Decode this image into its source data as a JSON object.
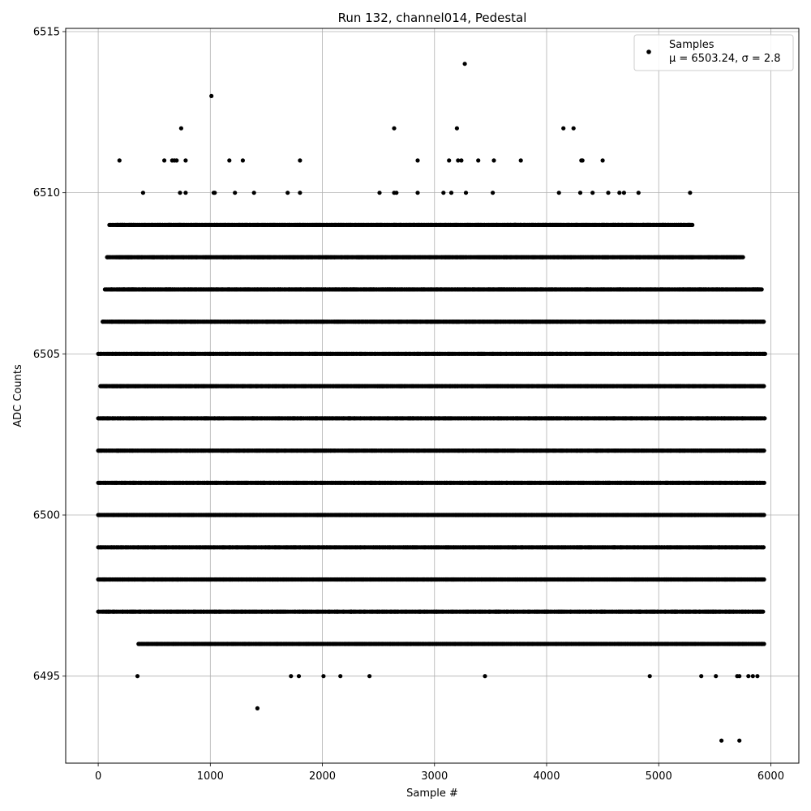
{
  "chart_data": {
    "type": "scatter",
    "title": "Run 132, channel014, Pedestal",
    "xlabel": "Sample #",
    "ylabel": "ADC Counts",
    "xlim": [
      -290,
      6250
    ],
    "ylim": [
      6492.3,
      6515.1
    ],
    "x_ticks": [
      0,
      1000,
      2000,
      3000,
      4000,
      5000,
      6000
    ],
    "y_ticks": [
      6495,
      6500,
      6505,
      6510,
      6515
    ],
    "grid": true,
    "marker_color": "#000000",
    "legend": {
      "placement": "upper right",
      "entries": [
        {
          "name": "Samples",
          "stat": "μ = 6503.24, σ = 2.8"
        }
      ]
    },
    "series": [
      {
        "name": "Samples",
        "bands": [
          {
            "y": 6501,
            "ranges": [
              [
                0,
                5950
              ]
            ]
          },
          {
            "y": 6502,
            "ranges": [
              [
                0,
                5950
              ]
            ]
          },
          {
            "y": 6503,
            "ranges": [
              [
                0,
                5950
              ]
            ]
          },
          {
            "y": 6504,
            "ranges": [
              [
                20,
                5950
              ]
            ]
          },
          {
            "y": 6505,
            "ranges": [
              [
                0,
                5950
              ]
            ]
          },
          {
            "y": 6500,
            "ranges": [
              [
                0,
                5940
              ]
            ]
          },
          {
            "y": 6506,
            "ranges": [
              [
                40,
                5940
              ]
            ]
          },
          {
            "y": 6499,
            "ranges": [
              [
                0,
                5940
              ]
            ]
          },
          {
            "y": 6507,
            "ranges": [
              [
                60,
                5930
              ]
            ]
          },
          {
            "y": 6498,
            "ranges": [
              [
                0,
                5940
              ]
            ]
          },
          {
            "y": 6508,
            "ranges": [
              [
                80,
                5760
              ]
            ]
          },
          {
            "y": 6497,
            "ranges": [
              [
                0,
                5940
              ]
            ]
          },
          {
            "y": 6509,
            "ranges": [
              [
                100,
                5300
              ]
            ]
          },
          {
            "y": 6496,
            "ranges": [
              [
                360,
                5940
              ]
            ]
          }
        ],
        "points": [
          [
            190,
            6511
          ],
          [
            590,
            6511
          ],
          [
            660,
            6511
          ],
          [
            680,
            6511
          ],
          [
            700,
            6511
          ],
          [
            780,
            6511
          ],
          [
            1170,
            6511
          ],
          [
            1290,
            6511
          ],
          [
            1800,
            6511
          ],
          [
            2850,
            6511
          ],
          [
            3130,
            6511
          ],
          [
            3210,
            6511
          ],
          [
            3240,
            6511
          ],
          [
            3390,
            6511
          ],
          [
            3530,
            6511
          ],
          [
            3770,
            6511
          ],
          [
            4310,
            6511
          ],
          [
            4320,
            6511
          ],
          [
            4500,
            6511
          ],
          [
            400,
            6510
          ],
          [
            730,
            6510
          ],
          [
            780,
            6510
          ],
          [
            1030,
            6510
          ],
          [
            1040,
            6510
          ],
          [
            1220,
            6510
          ],
          [
            1390,
            6510
          ],
          [
            1690,
            6510
          ],
          [
            1800,
            6510
          ],
          [
            2510,
            6510
          ],
          [
            2640,
            6510
          ],
          [
            2660,
            6510
          ],
          [
            2850,
            6510
          ],
          [
            3080,
            6510
          ],
          [
            3150,
            6510
          ],
          [
            3280,
            6510
          ],
          [
            3520,
            6510
          ],
          [
            4110,
            6510
          ],
          [
            4300,
            6510
          ],
          [
            4410,
            6510
          ],
          [
            4550,
            6510
          ],
          [
            4650,
            6510
          ],
          [
            4690,
            6510
          ],
          [
            4820,
            6510
          ],
          [
            5280,
            6510
          ],
          [
            740,
            6512
          ],
          [
            2640,
            6512
          ],
          [
            3200,
            6512
          ],
          [
            4150,
            6512
          ],
          [
            4240,
            6512
          ],
          [
            1010,
            6513
          ],
          [
            3270,
            6514
          ],
          [
            350,
            6495
          ],
          [
            1720,
            6495
          ],
          [
            1790,
            6495
          ],
          [
            2010,
            6495
          ],
          [
            2160,
            6495
          ],
          [
            2420,
            6495
          ],
          [
            3450,
            6495
          ],
          [
            4920,
            6495
          ],
          [
            5380,
            6495
          ],
          [
            5510,
            6495
          ],
          [
            5700,
            6495
          ],
          [
            5720,
            6495
          ],
          [
            5800,
            6495
          ],
          [
            5840,
            6495
          ],
          [
            5880,
            6495
          ],
          [
            1420,
            6494
          ],
          [
            5560,
            6493
          ],
          [
            5720,
            6493
          ]
        ]
      }
    ]
  }
}
